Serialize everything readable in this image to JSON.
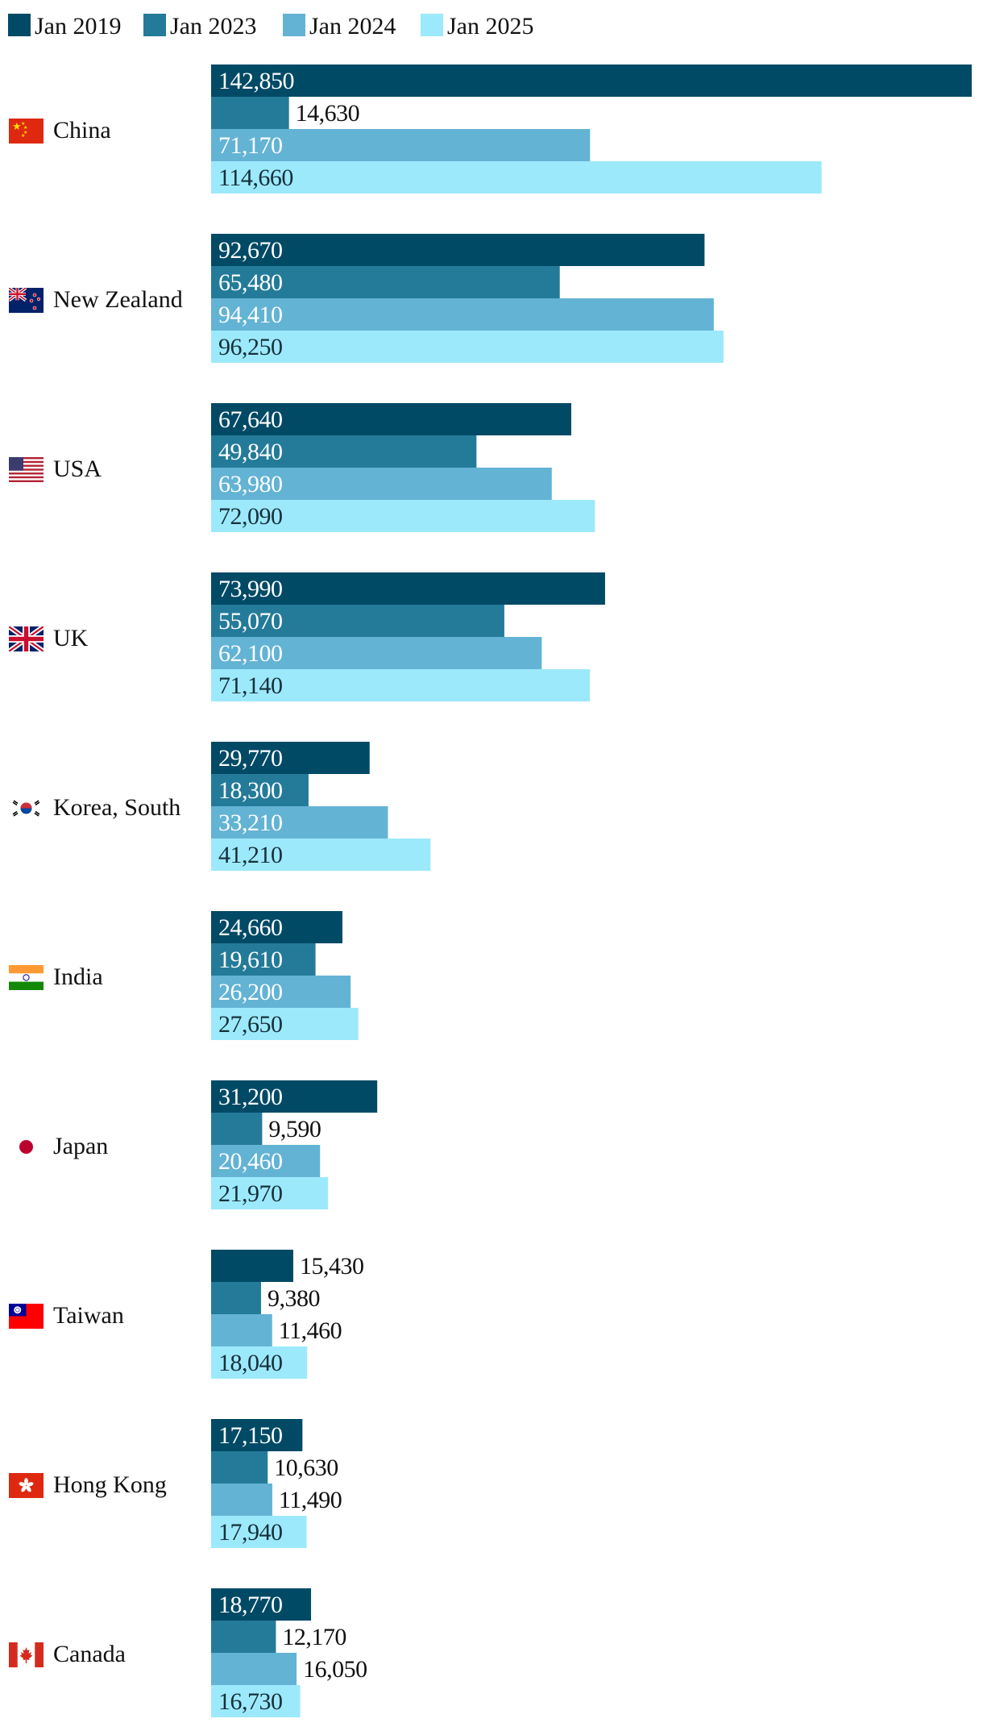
{
  "chart_data": {
    "type": "bar",
    "orientation": "horizontal",
    "title": "",
    "xlabel": "",
    "ylabel": "",
    "xlim": [
      0,
      142850
    ],
    "legend_position": "top-left",
    "grid": false,
    "categories": [
      "China",
      "New Zealand",
      "USA",
      "UK",
      "Korea, South",
      "India",
      "Japan",
      "Taiwan",
      "Hong Kong",
      "Canada"
    ],
    "series": [
      {
        "name": "Jan 2019",
        "color": "#004a66",
        "label_color": "#ffffff",
        "values": [
          142850,
          92670,
          67640,
          73990,
          29770,
          24660,
          31200,
          15430,
          17150,
          18770
        ],
        "labels": [
          "142,850",
          "92,670",
          "67,640",
          "73,990",
          "29,770",
          "24,660",
          "31,200",
          "15,430",
          "17,150",
          "18,770"
        ]
      },
      {
        "name": "Jan 2023",
        "color": "#247b99",
        "label_color": "#ffffff",
        "values": [
          14630,
          65480,
          49840,
          55070,
          18300,
          19610,
          9590,
          9380,
          10630,
          12170
        ],
        "labels": [
          "14,630",
          "65,480",
          "49,840",
          "55,070",
          "18,300",
          "19,610",
          "9,590",
          "9,380",
          "10,630",
          "12,170"
        ]
      },
      {
        "name": "Jan 2024",
        "color": "#63b3d4",
        "label_color": "#ffffff",
        "values": [
          71170,
          94410,
          63980,
          62100,
          33210,
          26200,
          20460,
          11460,
          11490,
          16050
        ],
        "labels": [
          "71,170",
          "94,410",
          "63,980",
          "62,100",
          "33,210",
          "26,200",
          "20,460",
          "11,460",
          "11,490",
          "16,050"
        ]
      },
      {
        "name": "Jan 2025",
        "color": "#9de9fc",
        "label_color": "#15303a",
        "values": [
          114660,
          96250,
          72090,
          71140,
          41210,
          27650,
          21970,
          18040,
          17940,
          16730
        ],
        "labels": [
          "114,660",
          "96,250",
          "72,090",
          "71,140",
          "41,210",
          "27,650",
          "21,970",
          "18,040",
          "17,940",
          "16,730"
        ]
      }
    ],
    "flags": [
      "china-flag-icon",
      "new-zealand-flag-icon",
      "usa-flag-icon",
      "uk-flag-icon",
      "korea-south-flag-icon",
      "india-flag-icon",
      "japan-flag-icon",
      "taiwan-flag-icon",
      "hong-kong-flag-icon",
      "canada-flag-icon"
    ]
  }
}
